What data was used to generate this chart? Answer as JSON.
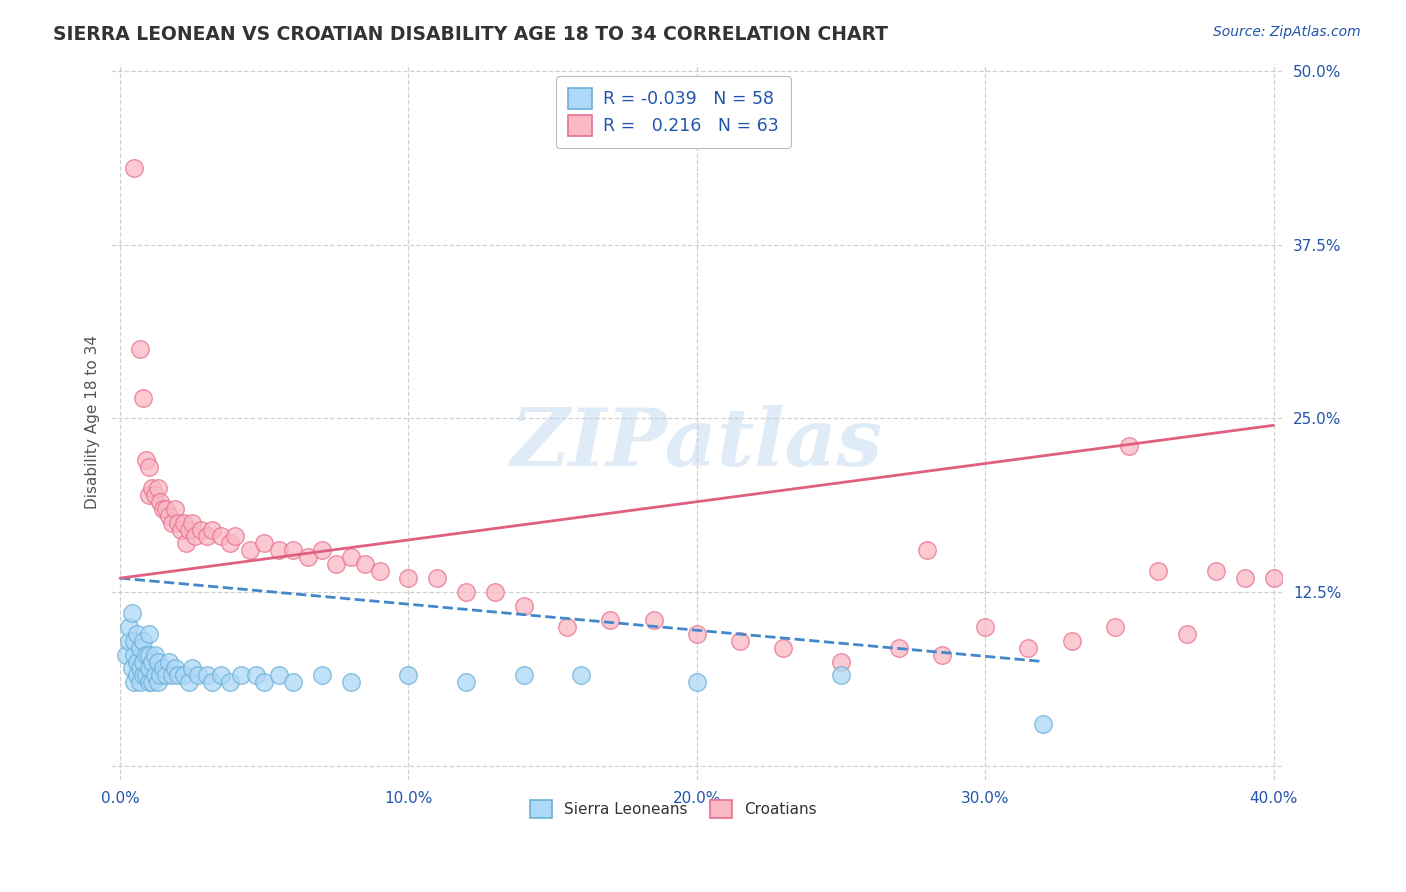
{
  "title": "SIERRA LEONEAN VS CROATIAN DISABILITY AGE 18 TO 34 CORRELATION CHART",
  "source": "Source: ZipAtlas.com",
  "ylabel": "Disability Age 18 to 34",
  "xlim": [
    -0.003,
    0.403
  ],
  "ylim": [
    -0.01,
    0.505
  ],
  "xticks": [
    0.0,
    0.1,
    0.2,
    0.3,
    0.4
  ],
  "yticks": [
    0.0,
    0.125,
    0.25,
    0.375,
    0.5
  ],
  "xticklabels": [
    "0.0%",
    "10.0%",
    "20.0%",
    "30.0%",
    "40.0%"
  ],
  "yticklabels": [
    "",
    "12.5%",
    "25.0%",
    "37.5%",
    "50.0%"
  ],
  "legend_labels": [
    "Sierra Leoneans",
    "Croatians"
  ],
  "legend_r_blue": "R = -0.039",
  "legend_r_pink": "R =   0.216",
  "legend_n_blue": "N = 58",
  "legend_n_pink": "N = 63",
  "blue_fill": "#ADD8F7",
  "blue_edge": "#6BAFD6",
  "pink_fill": "#F9B8C4",
  "pink_edge": "#E87090",
  "blue_line_color": "#4488CC",
  "pink_line_color": "#E06080",
  "title_color": "#333333",
  "axis_label_color": "#555555",
  "tick_color": "#2255AA",
  "grid_color": "#CCCCCC",
  "watermark": "ZIPatlas",
  "blue_x": [
    0.002,
    0.003,
    0.003,
    0.004,
    0.004,
    0.005,
    0.005,
    0.005,
    0.006,
    0.006,
    0.006,
    0.007,
    0.007,
    0.007,
    0.008,
    0.008,
    0.008,
    0.009,
    0.009,
    0.01,
    0.01,
    0.01,
    0.01,
    0.011,
    0.011,
    0.012,
    0.012,
    0.013,
    0.013,
    0.014,
    0.015,
    0.016,
    0.017,
    0.018,
    0.019,
    0.02,
    0.022,
    0.024,
    0.025,
    0.027,
    0.03,
    0.032,
    0.035,
    0.038,
    0.042,
    0.047,
    0.05,
    0.055,
    0.06,
    0.07,
    0.08,
    0.1,
    0.12,
    0.14,
    0.16,
    0.2,
    0.25,
    0.32
  ],
  "blue_y": [
    0.08,
    0.09,
    0.1,
    0.07,
    0.11,
    0.06,
    0.08,
    0.09,
    0.065,
    0.075,
    0.095,
    0.06,
    0.07,
    0.085,
    0.065,
    0.075,
    0.09,
    0.065,
    0.08,
    0.06,
    0.07,
    0.08,
    0.095,
    0.06,
    0.075,
    0.065,
    0.08,
    0.06,
    0.075,
    0.065,
    0.07,
    0.065,
    0.075,
    0.065,
    0.07,
    0.065,
    0.065,
    0.06,
    0.07,
    0.065,
    0.065,
    0.06,
    0.065,
    0.06,
    0.065,
    0.065,
    0.06,
    0.065,
    0.06,
    0.065,
    0.06,
    0.065,
    0.06,
    0.065,
    0.065,
    0.06,
    0.065,
    0.03
  ],
  "pink_x": [
    0.005,
    0.007,
    0.008,
    0.009,
    0.01,
    0.01,
    0.011,
    0.012,
    0.013,
    0.014,
    0.015,
    0.016,
    0.017,
    0.018,
    0.019,
    0.02,
    0.021,
    0.022,
    0.023,
    0.024,
    0.025,
    0.026,
    0.028,
    0.03,
    0.032,
    0.035,
    0.038,
    0.04,
    0.045,
    0.05,
    0.055,
    0.06,
    0.065,
    0.07,
    0.075,
    0.08,
    0.085,
    0.09,
    0.1,
    0.11,
    0.12,
    0.13,
    0.14,
    0.155,
    0.17,
    0.185,
    0.2,
    0.215,
    0.23,
    0.25,
    0.27,
    0.285,
    0.3,
    0.315,
    0.33,
    0.345,
    0.36,
    0.37,
    0.38,
    0.39,
    0.4,
    0.28,
    0.35
  ],
  "pink_y": [
    0.43,
    0.3,
    0.265,
    0.22,
    0.195,
    0.215,
    0.2,
    0.195,
    0.2,
    0.19,
    0.185,
    0.185,
    0.18,
    0.175,
    0.185,
    0.175,
    0.17,
    0.175,
    0.16,
    0.17,
    0.175,
    0.165,
    0.17,
    0.165,
    0.17,
    0.165,
    0.16,
    0.165,
    0.155,
    0.16,
    0.155,
    0.155,
    0.15,
    0.155,
    0.145,
    0.15,
    0.145,
    0.14,
    0.135,
    0.135,
    0.125,
    0.125,
    0.115,
    0.1,
    0.105,
    0.105,
    0.095,
    0.09,
    0.085,
    0.075,
    0.085,
    0.08,
    0.1,
    0.085,
    0.09,
    0.1,
    0.14,
    0.095,
    0.14,
    0.135,
    0.135,
    0.155,
    0.23
  ],
  "blue_trendline_x": [
    0.0,
    0.32
  ],
  "blue_trendline_y": [
    0.135,
    0.075
  ],
  "pink_trendline_x": [
    0.0,
    0.4
  ],
  "pink_trendline_y": [
    0.135,
    0.245
  ]
}
